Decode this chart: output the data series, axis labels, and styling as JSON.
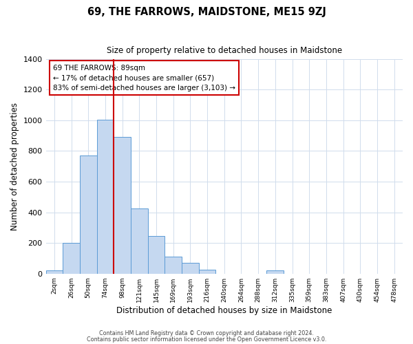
{
  "title": "69, THE FARROWS, MAIDSTONE, ME15 9ZJ",
  "subtitle": "Size of property relative to detached houses in Maidstone",
  "xlabel": "Distribution of detached houses by size in Maidstone",
  "ylabel": "Number of detached properties",
  "bar_labels": [
    "2sqm",
    "26sqm",
    "50sqm",
    "74sqm",
    "98sqm",
    "121sqm",
    "145sqm",
    "169sqm",
    "193sqm",
    "216sqm",
    "240sqm",
    "264sqm",
    "288sqm",
    "312sqm",
    "335sqm",
    "359sqm",
    "383sqm",
    "407sqm",
    "430sqm",
    "454sqm",
    "478sqm"
  ],
  "bar_values": [
    20,
    200,
    770,
    1005,
    890,
    425,
    245,
    110,
    70,
    25,
    0,
    0,
    0,
    20,
    0,
    0,
    0,
    0,
    0,
    0,
    0
  ],
  "bar_color": "#c5d8f0",
  "bar_edge_color": "#5b9bd5",
  "marker_color": "#cc0000",
  "red_line_x": 3.5,
  "ylim": [
    0,
    1400
  ],
  "yticks": [
    0,
    200,
    400,
    600,
    800,
    1000,
    1200,
    1400
  ],
  "annotation_text_line1": "69 THE FARROWS: 89sqm",
  "annotation_text_line2": "← 17% of detached houses are smaller (657)",
  "annotation_text_line3": "83% of semi-detached houses are larger (3,103) →",
  "annotation_box_color": "#ffffff",
  "annotation_box_edgecolor": "#cc0000",
  "footer_line1": "Contains HM Land Registry data © Crown copyright and database right 2024.",
  "footer_line2": "Contains public sector information licensed under the Open Government Licence v3.0.",
  "background_color": "#ffffff",
  "grid_color": "#d0dcec"
}
